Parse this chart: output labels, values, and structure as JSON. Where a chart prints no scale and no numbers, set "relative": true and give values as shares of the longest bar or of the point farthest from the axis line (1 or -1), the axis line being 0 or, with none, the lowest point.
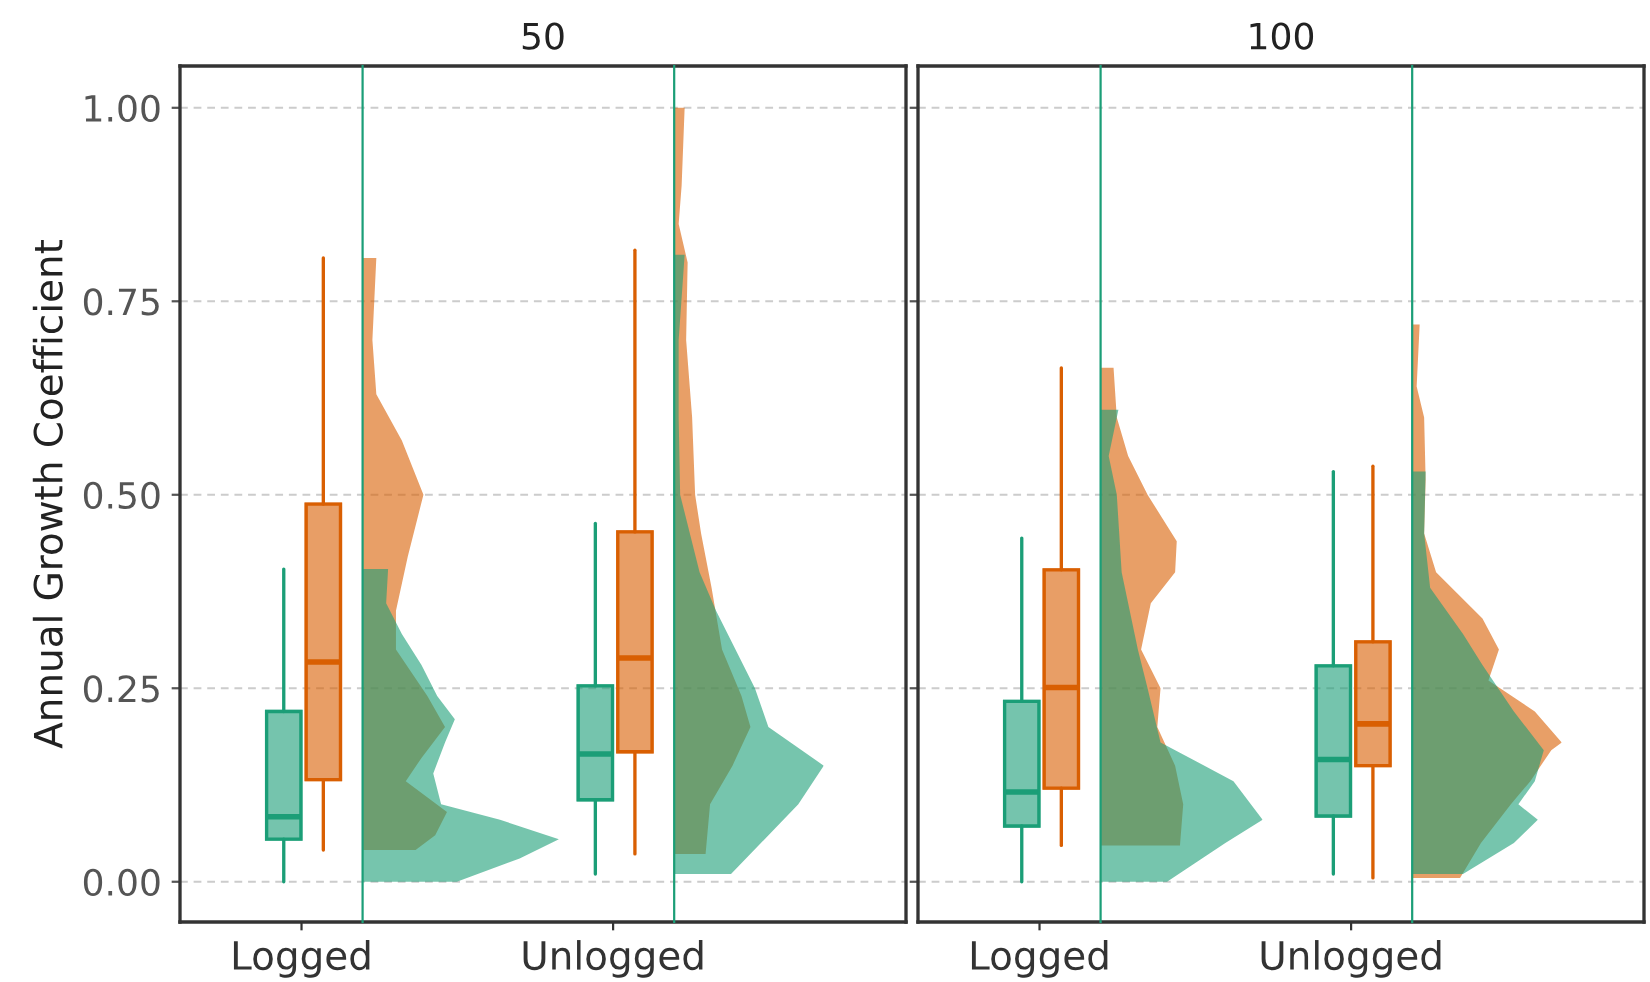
{
  "chart_data": [
    {
      "type": "box",
      "title": "50",
      "ylabel": "Annual Growth Coefficient",
      "categories": [
        "Logged",
        "Unlogged"
      ],
      "ylim": [
        -0.052,
        1.054
      ],
      "yticks": [
        {
          "value": 0,
          "label": "0.00"
        },
        {
          "value": 0.25,
          "label": "0.25"
        },
        {
          "value": 0.5,
          "label": "0.50"
        },
        {
          "value": 0.75,
          "label": "0.75"
        },
        {
          "value": 1,
          "label": "1.00"
        }
      ],
      "grid": "y",
      "series": [
        {
          "color": "#1b9e77",
          "boxes": [
            {
              "low": 0.0,
              "q1": 0.055,
              "median": 0.084,
              "q3": 0.22,
              "high": 0.404
            },
            {
              "low": 0.01,
              "q1": 0.106,
              "median": 0.165,
              "q3": 0.253,
              "high": 0.463
            }
          ]
        },
        {
          "color": "#d95f02",
          "boxes": [
            {
              "low": 0.041,
              "q1": 0.132,
              "median": 0.284,
              "q3": 0.488,
              "high": 0.806
            },
            {
              "low": 0.036,
              "q1": 0.168,
              "median": 0.289,
              "q3": 0.452,
              "high": 0.816
            }
          ]
        }
      ]
    },
    {
      "type": "area",
      "orientation": "horizontal",
      "relative": true,
      "ylim": [
        -0.052,
        1.054
      ],
      "series": [
        {
          "color": "#d95f02",
          "x": [
            0.041,
            0.06,
            0.09,
            0.13,
            0.16,
            0.2,
            0.24,
            0.3,
            0.35,
            0.42,
            0.5,
            0.57,
            0.63,
            0.7,
            0.806
          ],
          "values": [
            0.27,
            0.37,
            0.43,
            0.22,
            0.3,
            0.42,
            0.33,
            0.17,
            0.17,
            0.23,
            0.31,
            0.2,
            0.07,
            0.05,
            0.07
          ]
        },
        {
          "color": "#1b9e77",
          "x": [
            0.0,
            0.03,
            0.055,
            0.08,
            0.1,
            0.14,
            0.18,
            0.21,
            0.24,
            0.28,
            0.32,
            0.36,
            0.404
          ],
          "values": [
            0.48,
            0.8,
            1.0,
            0.7,
            0.4,
            0.36,
            0.42,
            0.47,
            0.38,
            0.3,
            0.2,
            0.12,
            0.13
          ]
        }
      ]
    },
    {
      "type": "area",
      "orientation": "horizontal",
      "relative": true,
      "ylim": [
        -0.052,
        1.054
      ],
      "series": [
        {
          "color": "#d95f02",
          "x": [
            0.036,
            0.1,
            0.15,
            0.2,
            0.24,
            0.3,
            0.38,
            0.45,
            0.5,
            0.6,
            0.7,
            0.8,
            0.85,
            0.9,
            1.0
          ],
          "values": [
            0.21,
            0.24,
            0.39,
            0.51,
            0.45,
            0.32,
            0.25,
            0.18,
            0.14,
            0.12,
            0.08,
            0.09,
            0.03,
            0.05,
            0.07
          ]
        },
        {
          "color": "#1b9e77",
          "x": [
            0.01,
            0.05,
            0.1,
            0.15,
            0.2,
            0.25,
            0.3,
            0.35,
            0.4,
            0.5,
            0.6,
            0.7,
            0.81
          ],
          "values": [
            0.38,
            0.58,
            0.83,
            1.0,
            0.63,
            0.54,
            0.41,
            0.28,
            0.17,
            0.04,
            0.03,
            0.03,
            0.07
          ]
        }
      ]
    },
    {
      "type": "box",
      "title": "100",
      "categories": [
        "Logged",
        "Unlogged"
      ],
      "ylim": [
        -0.052,
        1.054
      ],
      "yticks": [
        0,
        0.25,
        0.5,
        0.75,
        1
      ],
      "grid": "y",
      "tick_labels": "x",
      "series": [
        {
          "color": "#1b9e77",
          "boxes": [
            {
              "low": 0.0,
              "q1": 0.072,
              "median": 0.116,
              "q3": 0.233,
              "high": 0.444
            },
            {
              "low": 0.01,
              "q1": 0.085,
              "median": 0.158,
              "q3": 0.279,
              "high": 0.53
            }
          ]
        },
        {
          "color": "#d95f02",
          "boxes": [
            {
              "low": 0.047,
              "q1": 0.121,
              "median": 0.251,
              "q3": 0.403,
              "high": 0.664
            },
            {
              "low": 0.005,
              "q1": 0.15,
              "median": 0.204,
              "q3": 0.31,
              "high": 0.537
            }
          ]
        }
      ]
    },
    {
      "type": "area",
      "orientation": "horizontal",
      "relative": true,
      "ylim": [
        -0.052,
        1.054
      ],
      "series": [
        {
          "color": "#d95f02",
          "x": [
            0.047,
            0.1,
            0.15,
            0.2,
            0.25,
            0.3,
            0.36,
            0.4,
            0.44,
            0.5,
            0.55,
            0.6,
            0.664
          ],
          "values": [
            0.49,
            0.51,
            0.46,
            0.35,
            0.37,
            0.25,
            0.31,
            0.46,
            0.47,
            0.29,
            0.17,
            0.1,
            0.08
          ]
        },
        {
          "color": "#1b9e77",
          "x": [
            0.0,
            0.05,
            0.08,
            0.13,
            0.18,
            0.25,
            0.3,
            0.4,
            0.5,
            0.55,
            0.61
          ],
          "values": [
            0.41,
            0.77,
            1.0,
            0.82,
            0.37,
            0.29,
            0.23,
            0.13,
            0.1,
            0.05,
            0.11
          ]
        }
      ]
    },
    {
      "type": "area",
      "orientation": "horizontal",
      "relative": true,
      "ylim": [
        -0.052,
        1.054
      ],
      "series": [
        {
          "color": "#d95f02",
          "x": [
            0.005,
            0.05,
            0.1,
            0.13,
            0.17,
            0.18,
            0.22,
            0.26,
            0.3,
            0.34,
            0.4,
            0.45,
            0.52,
            0.6,
            0.64,
            0.72
          ],
          "values": [
            0.32,
            0.46,
            0.66,
            0.79,
            0.93,
            1.0,
            0.82,
            0.51,
            0.58,
            0.47,
            0.16,
            0.08,
            0.09,
            0.08,
            0.03,
            0.05
          ]
        },
        {
          "color": "#1b9e77",
          "x": [
            0.01,
            0.05,
            0.08,
            0.1,
            0.13,
            0.17,
            0.22,
            0.28,
            0.32,
            0.38,
            0.45,
            0.53
          ],
          "values": [
            0.34,
            0.68,
            0.84,
            0.71,
            0.82,
            0.88,
            0.68,
            0.47,
            0.34,
            0.12,
            0.08,
            0.09
          ]
        }
      ]
    }
  ]
}
